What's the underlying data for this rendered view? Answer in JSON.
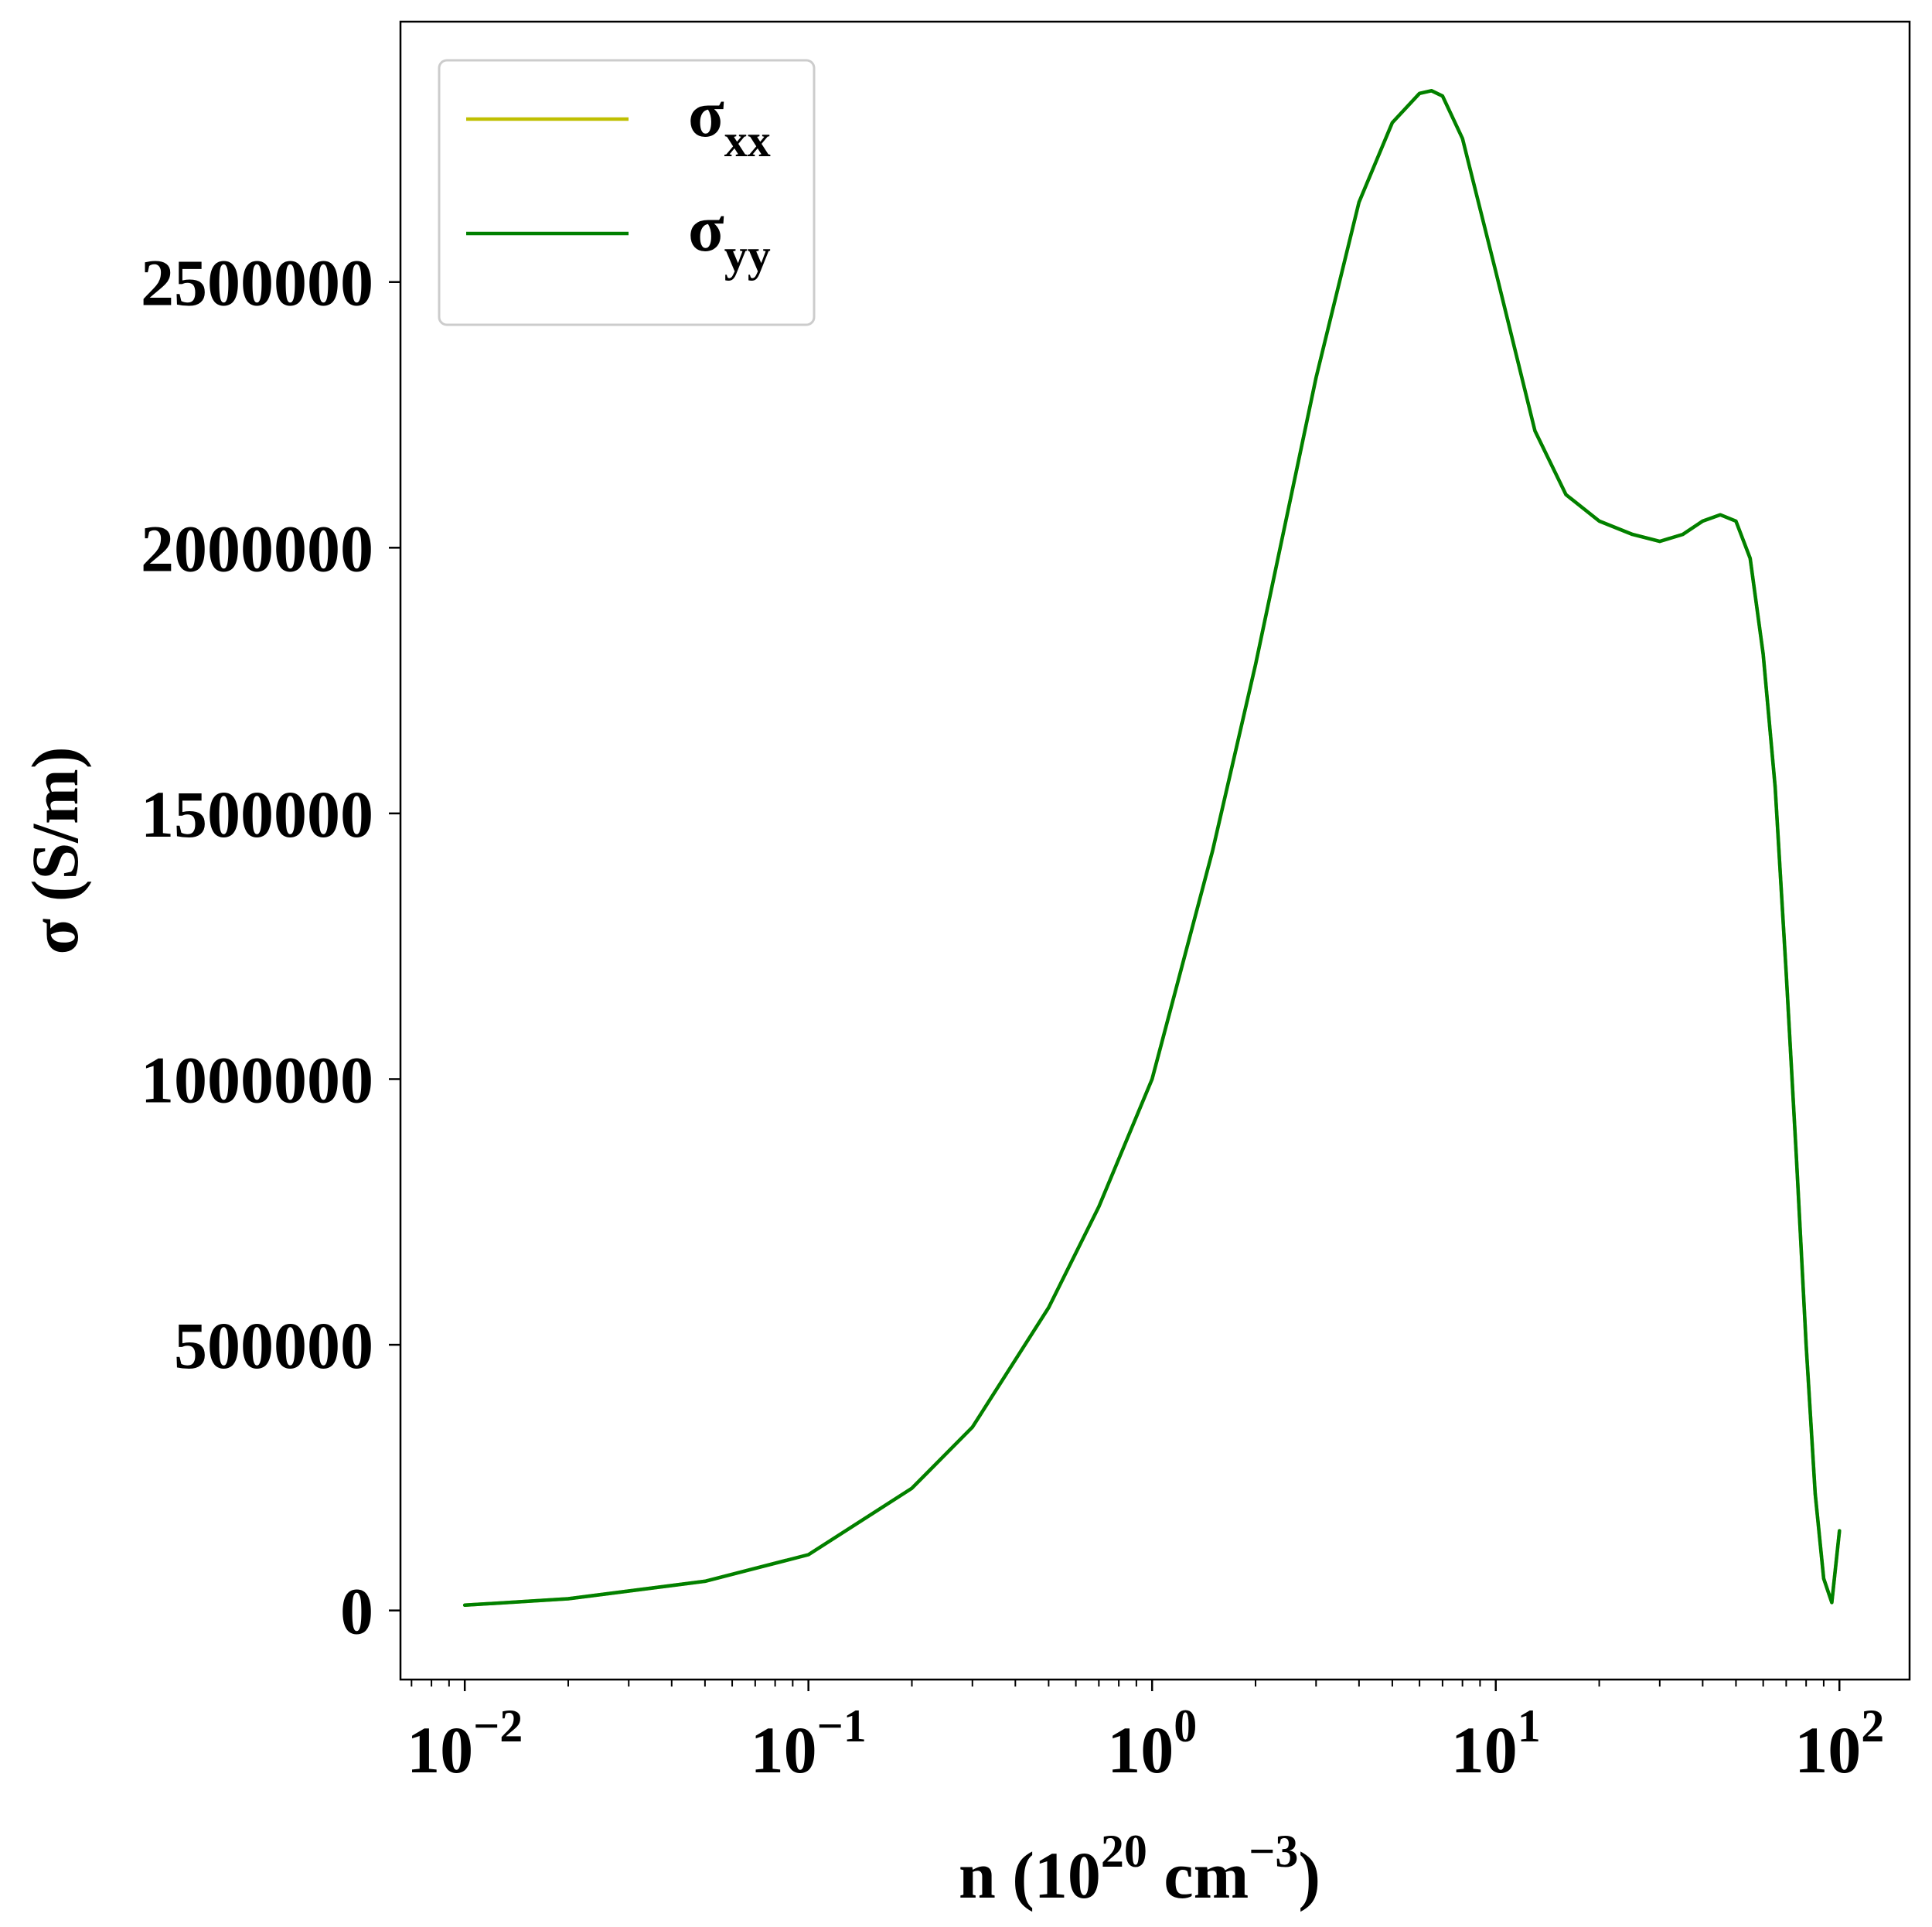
{
  "chart_data": {
    "type": "line",
    "x_scale": "log",
    "xlim": [
      0.0065,
      160
    ],
    "ylim": [
      -130000,
      2990000
    ],
    "xlabel": {
      "main": "n (10",
      "sup1": "20",
      "mid": " cm",
      "sup2": "−3",
      "end": ")"
    },
    "ylabel": "σ (S/m)",
    "x_ticks": [
      {
        "value": 0.01,
        "base": "10",
        "exp": "−2"
      },
      {
        "value": 0.1,
        "base": "10",
        "exp": "−1"
      },
      {
        "value": 1,
        "base": "10",
        "exp": "0"
      },
      {
        "value": 10,
        "base": "10",
        "exp": "1"
      },
      {
        "value": 100,
        "base": "10",
        "exp": "2"
      }
    ],
    "y_ticks": [
      {
        "value": 0,
        "label": "0"
      },
      {
        "value": 500000,
        "label": "500000"
      },
      {
        "value": 1000000,
        "label": "1000000"
      },
      {
        "value": 1500000,
        "label": "1500000"
      },
      {
        "value": 2000000,
        "label": "2000000"
      },
      {
        "value": 2500000,
        "label": "2500000"
      }
    ],
    "grid": false,
    "legend_position": "top-left",
    "series": [
      {
        "name": "σ",
        "subscript": "xx",
        "color": "#bfbf00",
        "x": [
          0.01,
          0.02,
          0.05,
          0.1,
          0.2,
          0.3,
          0.5,
          0.7,
          1.0,
          1.5,
          2.0,
          3.0,
          4.0,
          5.0,
          6.0,
          6.5,
          7.0,
          8.0,
          10.0,
          13.0,
          16.0,
          20.0,
          25.0,
          30.0,
          35.0,
          40.0,
          45.0,
          50.0,
          55.0,
          60.0,
          65.0,
          70.0,
          75.0,
          80.0,
          85.0,
          90.0,
          95.0,
          100.0
        ],
        "y": [
          10000,
          22000,
          55000,
          105000,
          230000,
          345000,
          570000,
          760000,
          1000000,
          1430000,
          1780000,
          2320000,
          2650000,
          2800000,
          2855000,
          2860000,
          2850000,
          2770000,
          2520000,
          2220000,
          2100000,
          2050000,
          2025000,
          2012000,
          2025000,
          2050000,
          2062000,
          2050000,
          1980000,
          1800000,
          1550000,
          1200000,
          850000,
          500000,
          220000,
          60000,
          15000,
          150000
        ]
      },
      {
        "name": "σ",
        "subscript": "yy",
        "color": "#008000",
        "x": [
          0.01,
          0.02,
          0.05,
          0.1,
          0.2,
          0.3,
          0.5,
          0.7,
          1.0,
          1.5,
          2.0,
          3.0,
          4.0,
          5.0,
          6.0,
          6.5,
          7.0,
          8.0,
          10.0,
          13.0,
          16.0,
          20.0,
          25.0,
          30.0,
          35.0,
          40.0,
          45.0,
          50.0,
          55.0,
          60.0,
          65.0,
          70.0,
          75.0,
          80.0,
          85.0,
          90.0,
          95.0,
          100.0
        ],
        "y": [
          10000,
          22000,
          55000,
          105000,
          230000,
          345000,
          570000,
          760000,
          1000000,
          1430000,
          1780000,
          2320000,
          2650000,
          2800000,
          2855000,
          2860000,
          2850000,
          2770000,
          2520000,
          2220000,
          2100000,
          2050000,
          2025000,
          2012000,
          2025000,
          2050000,
          2062000,
          2050000,
          1980000,
          1800000,
          1550000,
          1200000,
          850000,
          500000,
          220000,
          60000,
          15000,
          150000
        ]
      }
    ]
  }
}
